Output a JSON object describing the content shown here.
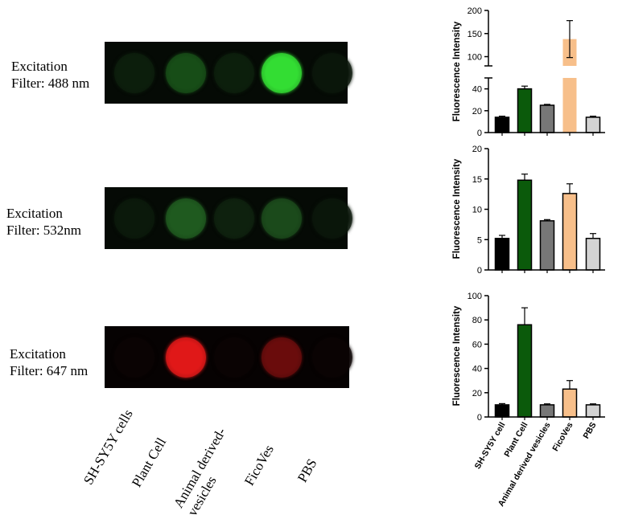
{
  "rows": [
    {
      "label_line1": "Excitation",
      "label_line2": "Filter: 488 nm",
      "channel": "green",
      "well_colors": [
        "#0c1e0c",
        "#174d17",
        "#0c1f0c",
        "#33dd33",
        "#0a160a"
      ]
    },
    {
      "label_line1": "Excitation",
      "label_line2": "Filter: 532nm",
      "channel": "green",
      "well_colors": [
        "#0b190b",
        "#1f5a1f",
        "#0e210e",
        "#1b4a1b",
        "#0a160a"
      ]
    },
    {
      "label_line1": "Excitation",
      "label_line2": "Filter: 647 nm",
      "channel": "red",
      "well_colors": [
        "#0a0303",
        "#e01818",
        "#0a0303",
        "#6a0c0c",
        "#0a0303"
      ]
    }
  ],
  "bottom_labels": [
    {
      "line1": "SH-SY5Y cells",
      "line2": ""
    },
    {
      "line1": "Plant Cell",
      "line2": ""
    },
    {
      "line1": "Animal derived-",
      "line2": "vesicles"
    },
    {
      "line1": "FicoVes",
      "line2": ""
    },
    {
      "line1": "PBS",
      "line2": ""
    }
  ],
  "chart_data": [
    {
      "type": "bar",
      "categories": [
        "SH-SY5Y cell",
        "Plant Cell",
        "Animal derived vesicles",
        "FicoVes",
        "PBS"
      ],
      "values": [
        14,
        40,
        25,
        138,
        14
      ],
      "errors": [
        1,
        2.5,
        0.8,
        40,
        1
      ],
      "ylabel": "Fluorescence Intensity",
      "broken_axis": true,
      "ylim_lower": [
        0,
        50
      ],
      "yticks_lower": [
        0,
        20,
        40
      ],
      "ylim_upper": [
        80,
        200
      ],
      "yticks_upper": [
        100,
        150,
        200
      ],
      "colors": [
        "#000000",
        "#0b5a0b",
        "#777777",
        "#f7bf8a",
        "#d3d3d3"
      ],
      "show_tick_labels": false
    },
    {
      "type": "bar",
      "categories": [
        "SH-SY5Y cell",
        "Plant Cell",
        "Animal derived vesicles",
        "FicoVes",
        "PBS"
      ],
      "values": [
        5.2,
        14.8,
        8.1,
        12.6,
        5.2
      ],
      "errors": [
        0.5,
        1.0,
        0.2,
        1.6,
        0.8
      ],
      "ylabel": "Fluorescence Intensity",
      "ylim": [
        0,
        20
      ],
      "yticks": [
        0,
        5,
        10,
        15,
        20
      ],
      "colors": [
        "#000000",
        "#0b5a0b",
        "#777777",
        "#f7bf8a",
        "#d3d3d3"
      ],
      "show_tick_labels": false
    },
    {
      "type": "bar",
      "categories": [
        "SH-SY5Y cell",
        "Plant Cell",
        "Animal derived vesicles",
        "FicoVes",
        "PBS"
      ],
      "values": [
        10,
        76,
        10,
        23,
        10
      ],
      "errors": [
        1,
        14,
        0.8,
        7,
        0.8
      ],
      "ylabel": "Fluorescence Intensity",
      "ylim": [
        0,
        100
      ],
      "yticks": [
        0,
        20,
        40,
        60,
        80,
        100
      ],
      "colors": [
        "#000000",
        "#0b5a0b",
        "#777777",
        "#f7bf8a",
        "#d3d3d3"
      ],
      "show_tick_labels": true
    }
  ]
}
